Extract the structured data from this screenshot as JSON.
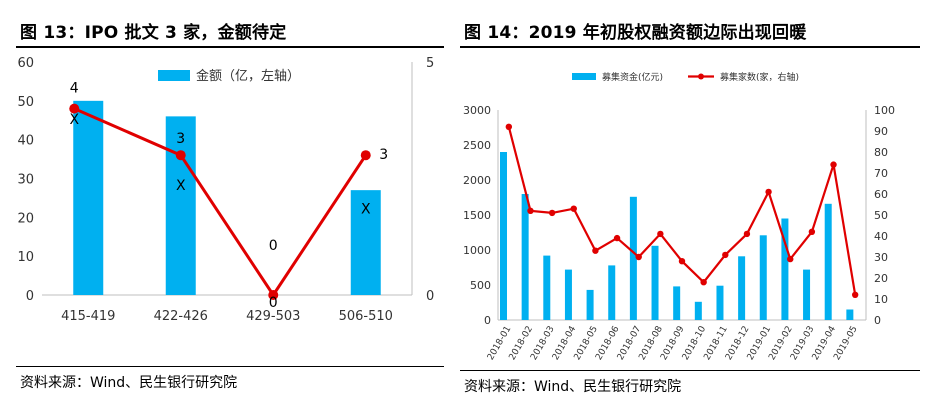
{
  "left": {
    "title": "图 13：IPO 批文 3 家，金额待定",
    "source": "资料来源：Wind、民生银行研究院",
    "legend_bar": "金额（亿，左轴）",
    "chart_data": {
      "type": "bar+line",
      "categories": [
        "415-419",
        "422-426",
        "429-503",
        "506-510"
      ],
      "series": [
        {
          "name": "金额（亿，左轴）",
          "type": "bar",
          "axis": "left",
          "values": [
            50,
            46,
            0,
            27
          ],
          "color": "#00B0F0"
        },
        {
          "type": "line",
          "axis": "right",
          "values": [
            4,
            3,
            0,
            3
          ],
          "color": "#E00000"
        }
      ],
      "y_left": {
        "range": [
          0,
          60
        ],
        "ticks": [
          "0",
          "10",
          "20",
          "30",
          "40",
          "50",
          "60"
        ]
      },
      "y_right": {
        "range": [
          0,
          5
        ],
        "ticks": [
          "0",
          "5"
        ]
      },
      "point_labels": [
        "4",
        "3",
        "0",
        "3"
      ],
      "zero_label": "0",
      "bar_marks": [
        "X",
        "X",
        "X"
      ],
      "legend_position": "top"
    }
  },
  "right": {
    "title": "图 14：2019 年初股权融资额边际出现回暖",
    "source": "资料来源：Wind、民生银行研究院",
    "chart_data": {
      "type": "bar+line",
      "categories": [
        "2018-01",
        "2018-02",
        "2018-03",
        "2018-04",
        "2018-05",
        "2018-06",
        "2018-07",
        "2018-08",
        "2018-09",
        "2018-10",
        "2018-11",
        "2018-12",
        "2019-01",
        "2019-02",
        "2019-03",
        "2019-04",
        "2019-05"
      ],
      "series": [
        {
          "name": "募集资金(亿元)",
          "type": "bar",
          "axis": "left",
          "values": [
            2400,
            1800,
            920,
            720,
            430,
            780,
            1760,
            1060,
            480,
            260,
            490,
            910,
            1210,
            1450,
            720,
            1660,
            150
          ],
          "color": "#00B0F0"
        },
        {
          "name": "募集家数(家，右轴)",
          "type": "line",
          "axis": "right",
          "values": [
            92,
            52,
            51,
            53,
            33,
            39,
            30,
            41,
            28,
            18,
            31,
            41,
            61,
            29,
            42,
            74,
            12
          ],
          "color": "#E00000"
        }
      ],
      "y_left": {
        "range": [
          0,
          3000
        ],
        "ticks": [
          "0",
          "500",
          "1000",
          "1500",
          "2000",
          "2500",
          "3000"
        ]
      },
      "y_right": {
        "range": [
          0,
          100
        ],
        "ticks": [
          "0",
          "10",
          "20",
          "30",
          "40",
          "50",
          "60",
          "70",
          "80",
          "90",
          "100"
        ]
      },
      "legend_position": "top"
    }
  }
}
